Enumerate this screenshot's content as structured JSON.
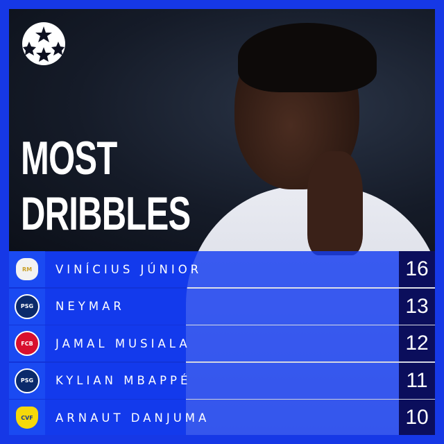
{
  "title_lines": [
    "MOST",
    "DRIBBLES"
  ],
  "logo": "uefa-champions-league-starball",
  "colors": {
    "frame": "#1638e6",
    "row": "#1a4af2",
    "value_cell": "#0b0e5c",
    "text": "#ffffff"
  },
  "rows": [
    {
      "rank": 1,
      "player": "VINÍCIUS JÚNIOR",
      "club_icon": "real-madrid-crest",
      "value": "16"
    },
    {
      "rank": 2,
      "player": "NEYMAR",
      "club_icon": "psg-crest",
      "value": "13"
    },
    {
      "rank": 3,
      "player": "JAMAL MUSIALA",
      "club_icon": "bayern-munich-crest",
      "value": "12"
    },
    {
      "rank": 4,
      "player": "KYLIAN MBAPPÉ",
      "club_icon": "psg-crest",
      "value": "11"
    },
    {
      "rank": 5,
      "player": "ARNAUT DANJUMA",
      "club_icon": "villarreal-crest",
      "value": "10"
    }
  ]
}
